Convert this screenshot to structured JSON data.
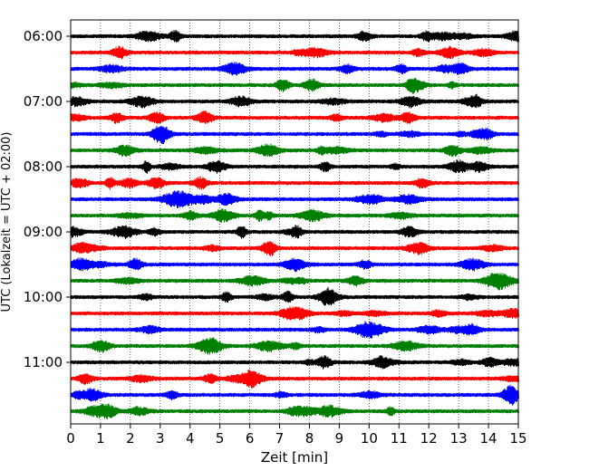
{
  "chart_data": {
    "type": "line",
    "title": "",
    "xlabel": "Zeit  [min]",
    "ylabel": "UTC (Lokalzeit = UTC + 02:00)",
    "xlim": [
      0,
      15
    ],
    "x_ticks": [
      "0",
      "1",
      "2",
      "3",
      "4",
      "5",
      "6",
      "7",
      "8",
      "9",
      "10",
      "11",
      "12",
      "13",
      "14",
      "15"
    ],
    "y_tick_labels": [
      "06:00",
      "07:00",
      "08:00",
      "09:00",
      "10:00",
      "11:00"
    ],
    "row_interval_min": 15,
    "rows": [
      "06:00",
      "06:15",
      "06:30",
      "06:45",
      "07:00",
      "07:15",
      "07:30",
      "07:45",
      "08:00",
      "08:15",
      "08:30",
      "08:45",
      "09:00",
      "09:15",
      "09:30",
      "09:45",
      "10:00",
      "10:15",
      "10:30",
      "10:45",
      "11:00",
      "11:15",
      "11:30",
      "11:45"
    ],
    "color_cycle": [
      "#000000",
      "#ff0000",
      "#0000ff",
      "#008000"
    ],
    "grid": "vertical dotted lines at each minute",
    "legend": "none"
  }
}
